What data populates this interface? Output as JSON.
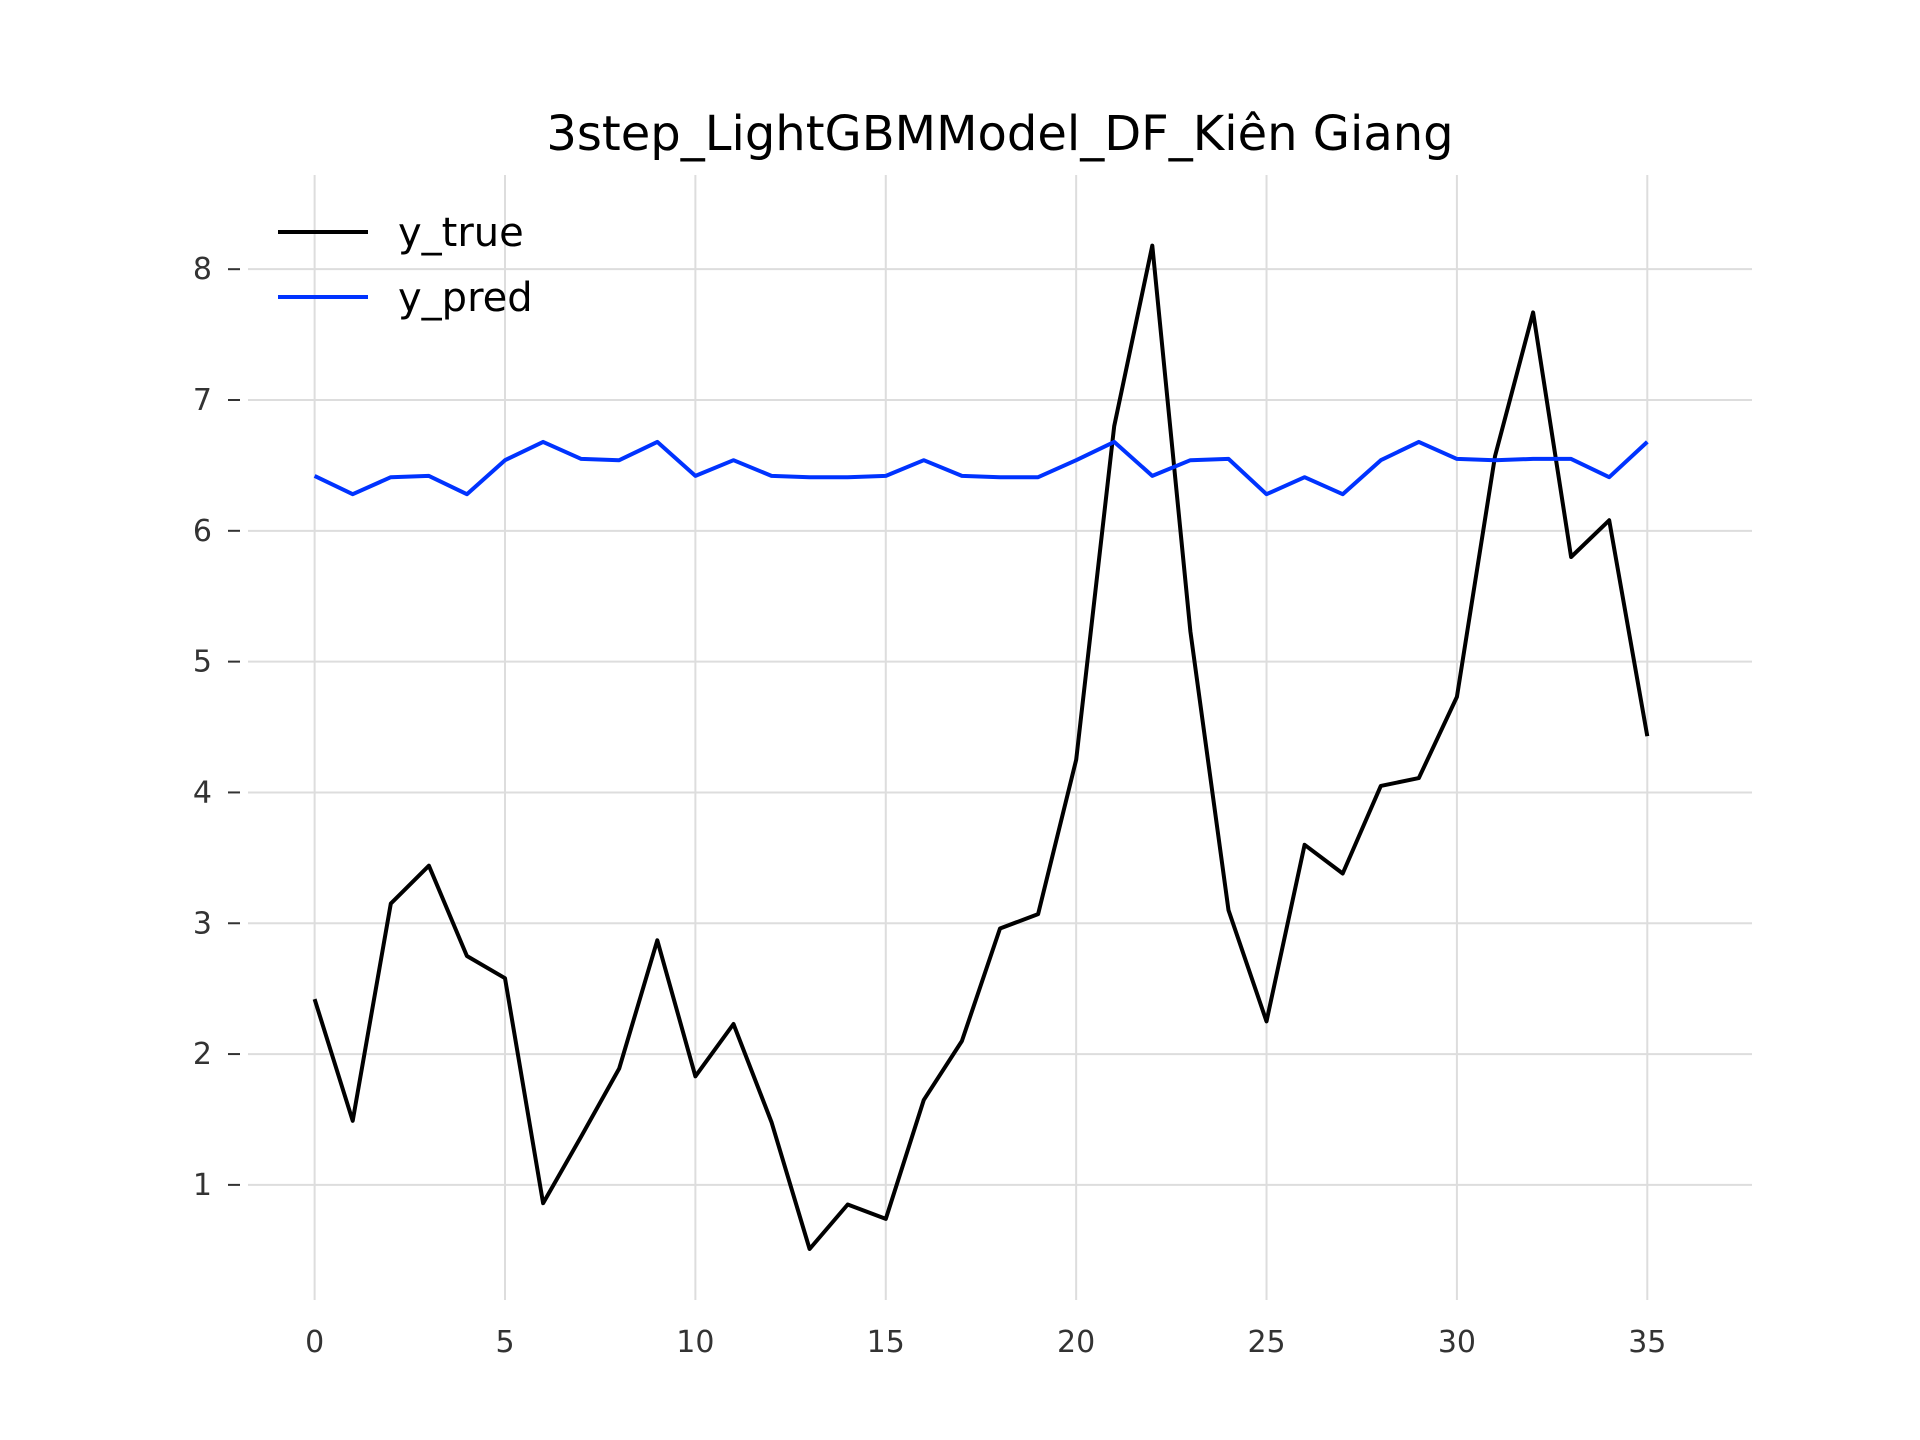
{
  "chart_data": {
    "type": "line",
    "title": "3step_LightGBMModel_DF_Kiên Giang",
    "xlabel": "",
    "ylabel": "",
    "xlim": [
      -1.75,
      37.75
    ],
    "ylim": [
      0.12,
      8.72
    ],
    "x_ticks": [
      0,
      5,
      10,
      15,
      20,
      25,
      30,
      35
    ],
    "y_ticks": [
      1,
      2,
      3,
      4,
      5,
      6,
      7,
      8
    ],
    "grid": true,
    "legend_position": "top-left",
    "x": [
      0,
      1,
      2,
      3,
      4,
      5,
      6,
      7,
      8,
      9,
      10,
      11,
      12,
      13,
      14,
      15,
      16,
      17,
      18,
      19,
      20,
      21,
      22,
      23,
      24,
      25,
      26,
      27,
      28,
      29,
      30,
      31,
      32,
      33,
      34,
      35
    ],
    "series": [
      {
        "name": "y_true",
        "color": "#000000",
        "values": [
          2.42,
          1.49,
          3.15,
          3.44,
          2.75,
          2.58,
          0.86,
          1.37,
          1.89,
          2.87,
          1.83,
          2.23,
          1.48,
          0.51,
          0.85,
          0.74,
          1.65,
          2.1,
          2.96,
          3.07,
          4.25,
          6.8,
          8.18,
          5.23,
          3.1,
          2.25,
          3.6,
          3.38,
          4.05,
          4.11,
          4.73,
          6.57,
          7.67,
          5.8,
          6.08,
          4.43
        ]
      },
      {
        "name": "y_pred",
        "color": "#0033ff",
        "values": [
          6.42,
          6.28,
          6.41,
          6.42,
          6.28,
          6.54,
          6.68,
          6.55,
          6.54,
          6.68,
          6.42,
          6.54,
          6.42,
          6.41,
          6.41,
          6.42,
          6.54,
          6.42,
          6.41,
          6.41,
          6.54,
          6.68,
          6.42,
          6.54,
          6.55,
          6.28,
          6.41,
          6.28,
          6.54,
          6.68,
          6.55,
          6.54,
          6.55,
          6.55,
          6.41,
          6.68
        ]
      }
    ]
  }
}
